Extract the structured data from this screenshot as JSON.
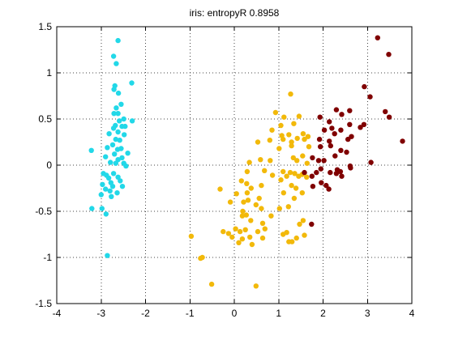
{
  "chart_data": {
    "type": "scatter",
    "title": "iris: entropyR  0.8958",
    "xlabel": "",
    "ylabel": "",
    "xlim": [
      -4,
      4
    ],
    "ylim": [
      -1.5,
      1.5
    ],
    "xticks": [
      -4,
      -3,
      -2,
      -1,
      0,
      1,
      2,
      3,
      4
    ],
    "xtick_labels": [
      "-4",
      "-3",
      "-2",
      "-1",
      "0",
      "1",
      "2",
      "3",
      "4"
    ],
    "yticks": [
      -1.5,
      -1,
      -0.5,
      0,
      0.5,
      1,
      1.5
    ],
    "ytick_labels": [
      "-1.5",
      "-1",
      "-0.5",
      "0",
      "0.5",
      "1",
      "1.5"
    ],
    "grid": true,
    "series": [
      {
        "color": "#22d8e8",
        "points": [
          [
            -2.62,
            1.35
          ],
          [
            -2.72,
            1.18
          ],
          [
            -2.66,
            1.1
          ],
          [
            -2.69,
            0.86
          ],
          [
            -2.71,
            0.82
          ],
          [
            -2.31,
            0.89
          ],
          [
            -2.61,
            0.78
          ],
          [
            -2.55,
            0.66
          ],
          [
            -2.66,
            0.62
          ],
          [
            -2.71,
            0.56
          ],
          [
            -2.62,
            0.56
          ],
          [
            -2.49,
            0.5
          ],
          [
            -2.59,
            0.48
          ],
          [
            -2.68,
            0.43
          ],
          [
            -2.53,
            0.42
          ],
          [
            -2.46,
            0.42
          ],
          [
            -2.3,
            0.48
          ],
          [
            -2.72,
            0.4
          ],
          [
            -2.62,
            0.36
          ],
          [
            -2.82,
            0.34
          ],
          [
            -2.48,
            0.33
          ],
          [
            -2.67,
            0.28
          ],
          [
            -2.58,
            0.27
          ],
          [
            -2.74,
            0.22
          ],
          [
            -2.86,
            0.19
          ],
          [
            -2.55,
            0.18
          ],
          [
            -2.63,
            0.17
          ],
          [
            -3.22,
            0.16
          ],
          [
            -2.7,
            0.12
          ],
          [
            -2.4,
            0.13
          ],
          [
            -2.9,
            0.09
          ],
          [
            -2.53,
            0.08
          ],
          [
            -2.62,
            0.06
          ],
          [
            -2.79,
            0.03
          ],
          [
            -2.67,
            0.02
          ],
          [
            -2.49,
            0.02
          ],
          [
            -2.44,
            -0.01
          ],
          [
            -2.95,
            -0.09
          ],
          [
            -2.72,
            -0.09
          ],
          [
            -2.88,
            -0.11
          ],
          [
            -2.62,
            -0.13
          ],
          [
            -2.83,
            -0.14
          ],
          [
            -2.57,
            -0.17
          ],
          [
            -2.78,
            -0.19
          ],
          [
            -2.97,
            -0.21
          ],
          [
            -2.74,
            -0.23
          ],
          [
            -2.52,
            -0.23
          ],
          [
            -2.9,
            -0.26
          ],
          [
            -2.8,
            -0.28
          ],
          [
            -2.64,
            -0.3
          ],
          [
            -3.0,
            -0.32
          ],
          [
            -2.77,
            -0.34
          ],
          [
            -3.21,
            -0.47
          ],
          [
            -2.98,
            -0.47
          ],
          [
            -2.89,
            -0.53
          ],
          [
            -2.86,
            -0.98
          ]
        ]
      },
      {
        "color": "#f2b90a",
        "points": [
          [
            1.27,
            0.77
          ],
          [
            0.93,
            0.57
          ],
          [
            1.46,
            0.53
          ],
          [
            1.12,
            0.52
          ],
          [
            1.34,
            0.45
          ],
          [
            1.05,
            0.43
          ],
          [
            0.85,
            0.38
          ],
          [
            1.55,
            0.34
          ],
          [
            1.23,
            0.33
          ],
          [
            1.07,
            0.32
          ],
          [
            1.66,
            0.31
          ],
          [
            1.42,
            0.29
          ],
          [
            1.1,
            0.28
          ],
          [
            0.8,
            0.27
          ],
          [
            1.29,
            0.25
          ],
          [
            1.58,
            0.28
          ],
          [
            0.53,
            0.25
          ],
          [
            1.29,
            0.21
          ],
          [
            1.68,
            0.2
          ],
          [
            1.01,
            0.18
          ],
          [
            1.54,
            0.1
          ],
          [
            0.59,
            0.06
          ],
          [
            1.33,
            0.08
          ],
          [
            0.81,
            0.05
          ],
          [
            1.41,
            0.05
          ],
          [
            0.34,
            0.03
          ],
          [
            1.64,
            0.02
          ],
          [
            0.29,
            -0.07
          ],
          [
            0.68,
            -0.06
          ],
          [
            1.1,
            -0.07
          ],
          [
            1.26,
            -0.08
          ],
          [
            1.36,
            -0.09
          ],
          [
            1.53,
            -0.1
          ],
          [
            0.86,
            -0.11
          ],
          [
            1.45,
            -0.12
          ],
          [
            1.18,
            -0.12
          ],
          [
            1.63,
            -0.13
          ],
          [
            0.16,
            -0.17
          ],
          [
            0.28,
            -0.2
          ],
          [
            1.05,
            -0.16
          ],
          [
            0.61,
            -0.22
          ],
          [
            1.29,
            -0.22
          ],
          [
            0.38,
            -0.25
          ],
          [
            1.39,
            -0.25
          ],
          [
            0.29,
            -0.3
          ],
          [
            -0.32,
            -0.26
          ],
          [
            1.11,
            -0.3
          ],
          [
            1.53,
            -0.3
          ],
          [
            0.05,
            -0.31
          ],
          [
            1.35,
            -0.36
          ],
          [
            0.31,
            -0.38
          ],
          [
            0.56,
            -0.36
          ],
          [
            0.21,
            -0.4
          ],
          [
            0.49,
            -0.43
          ],
          [
            -0.09,
            -0.4
          ],
          [
            1.22,
            -0.45
          ],
          [
            0.61,
            -0.47
          ],
          [
            1.02,
            -0.47
          ],
          [
            0.19,
            -0.5
          ],
          [
            0.27,
            -0.54
          ],
          [
            0.83,
            -0.55
          ],
          [
            0.18,
            -0.55
          ],
          [
            0.37,
            -0.6
          ],
          [
            1.55,
            -0.6
          ],
          [
            0.64,
            -0.63
          ],
          [
            1.47,
            -0.64
          ],
          [
            0.25,
            -0.7
          ],
          [
            0.69,
            -0.69
          ],
          [
            0.03,
            -0.69
          ],
          [
            1.18,
            -0.73
          ],
          [
            0.53,
            -0.72
          ],
          [
            0.13,
            -0.72
          ],
          [
            -0.25,
            -0.72
          ],
          [
            -0.13,
            -0.74
          ],
          [
            1.1,
            -0.75
          ],
          [
            0.35,
            -0.78
          ],
          [
            1.58,
            -0.76
          ],
          [
            -0.05,
            -0.78
          ],
          [
            0.18,
            -0.8
          ],
          [
            0.64,
            -0.79
          ],
          [
            1.4,
            -0.79
          ],
          [
            0.1,
            -0.84
          ],
          [
            1.23,
            -0.83
          ],
          [
            1.3,
            -0.83
          ],
          [
            0.4,
            -0.86
          ],
          [
            -0.97,
            -0.77
          ],
          [
            -0.76,
            -1.01
          ],
          [
            -0.72,
            -1.0
          ],
          [
            -0.51,
            -1.29
          ],
          [
            0.49,
            -1.31
          ]
        ]
      },
      {
        "color": "#800000",
        "points": [
          [
            3.23,
            1.38
          ],
          [
            3.48,
            1.2
          ],
          [
            2.93,
            0.85
          ],
          [
            3.06,
            0.74
          ],
          [
            2.3,
            0.6
          ],
          [
            3.4,
            0.58
          ],
          [
            2.6,
            0.59
          ],
          [
            2.42,
            0.55
          ],
          [
            1.93,
            0.52
          ],
          [
            2.14,
            0.47
          ],
          [
            3.49,
            0.52
          ],
          [
            2.6,
            0.44
          ],
          [
            2.92,
            0.44
          ],
          [
            2.84,
            0.41
          ],
          [
            2.2,
            0.4
          ],
          [
            2.4,
            0.38
          ],
          [
            2.03,
            0.38
          ],
          [
            2.26,
            0.34
          ],
          [
            2.56,
            0.28
          ],
          [
            1.92,
            0.28
          ],
          [
            2.14,
            0.26
          ],
          [
            2.64,
            0.31
          ],
          [
            3.79,
            0.26
          ],
          [
            1.94,
            0.2
          ],
          [
            2.17,
            0.21
          ],
          [
            2.4,
            0.16
          ],
          [
            2.53,
            0.14
          ],
          [
            1.9,
            0.05
          ],
          [
            1.76,
            0.08
          ],
          [
            2.02,
            0.05
          ],
          [
            2.27,
            0.1
          ],
          [
            3.08,
            0.03
          ],
          [
            2.61,
            -0.01
          ],
          [
            2.32,
            -0.05
          ],
          [
            2.62,
            -0.03
          ],
          [
            1.95,
            -0.04
          ],
          [
            1.85,
            -0.08
          ],
          [
            2.39,
            -0.07
          ],
          [
            1.58,
            -0.08
          ],
          [
            2.16,
            -0.08
          ],
          [
            2.3,
            -0.09
          ],
          [
            1.75,
            -0.12
          ],
          [
            2.42,
            -0.12
          ],
          [
            1.96,
            -0.19
          ],
          [
            2.07,
            -0.22
          ],
          [
            1.77,
            -0.23
          ],
          [
            2.13,
            -0.26
          ],
          [
            1.74,
            -0.64
          ]
        ]
      }
    ]
  }
}
